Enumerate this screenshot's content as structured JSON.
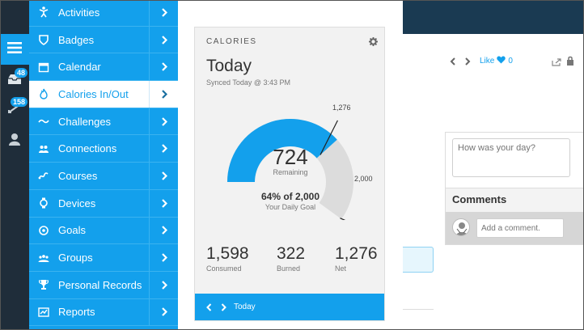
{
  "rail": {
    "inbox_count": "48",
    "connections_count": "158"
  },
  "nav": {
    "items": [
      {
        "label": "Activities",
        "icon": "runner-icon"
      },
      {
        "label": "Badges",
        "icon": "badge-icon"
      },
      {
        "label": "Calendar",
        "icon": "calendar-icon"
      },
      {
        "label": "Calories In/Out",
        "icon": "flame-icon",
        "active": true
      },
      {
        "label": "Challenges",
        "icon": "challenge-icon"
      },
      {
        "label": "Connections",
        "icon": "people-icon"
      },
      {
        "label": "Courses",
        "icon": "courses-icon"
      },
      {
        "label": "Devices",
        "icon": "watch-icon"
      },
      {
        "label": "Goals",
        "icon": "target-icon"
      },
      {
        "label": "Groups",
        "icon": "group-icon"
      },
      {
        "label": "Personal Records",
        "icon": "trophy-icon"
      },
      {
        "label": "Reports",
        "icon": "report-icon"
      }
    ]
  },
  "card": {
    "title": "CALORIES",
    "heading": "Today",
    "synced": "Synced Today @ 3:43 PM",
    "remaining_value": "724",
    "remaining_label": "Remaining",
    "percent_text": "64% of 2,000",
    "goal_label": "Your Daily Goal",
    "marker_net": "1,276",
    "marker_goal": "2,000",
    "progress_fraction": 0.638,
    "stats": {
      "consumed_value": "1,598",
      "consumed_label": "Consumed",
      "burned_value": "322",
      "burned_label": "Burned",
      "net_value": "1,276",
      "net_label": "Net"
    },
    "footer_label": "Today"
  },
  "detail": {
    "like_label": "Like",
    "like_count": "0",
    "mood_placeholder": "How was your day?",
    "comments_heading": "Comments",
    "comment_placeholder": "Add a comment."
  },
  "colors": {
    "accent": "#13a0ec",
    "rail": "#1f2d3a",
    "topbar": "#1a3a52"
  }
}
